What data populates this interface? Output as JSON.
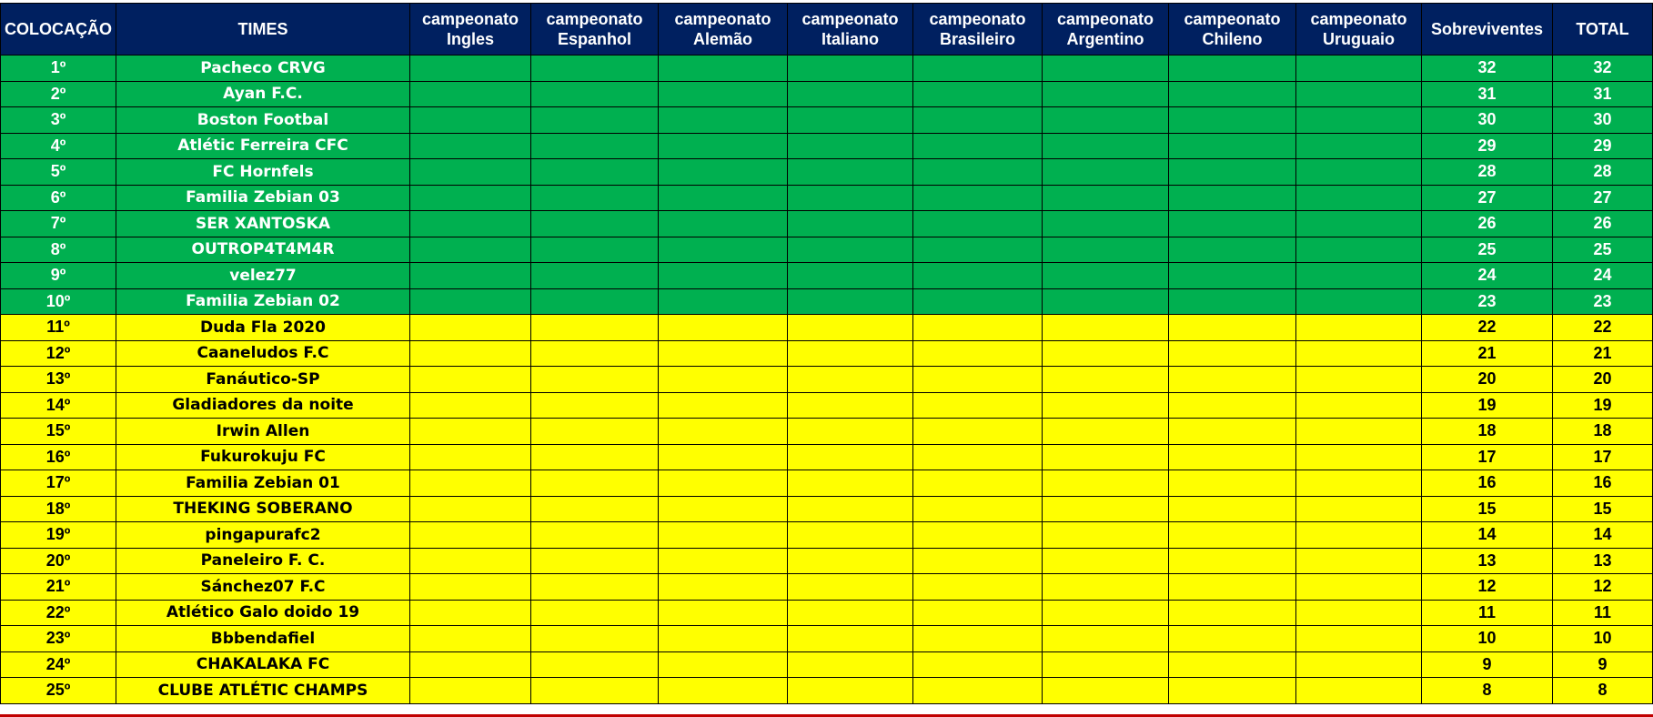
{
  "colors": {
    "header": "#002060",
    "top10": "#00B050",
    "rest": "#FFFF00"
  },
  "headers": [
    "COLOCAÇÃO",
    "TIMES",
    "campeonato Ingles",
    "campeonato Espanhol",
    "campeonato Alemão",
    "campeonato Italiano",
    "campeonato Brasileiro",
    "campeonato Argentino",
    "campeonato Chileno",
    "campeonato Uruguaio",
    "Sobreviventes",
    "TOTAL"
  ],
  "rows": [
    {
      "pos": "1º",
      "team": "Pacheco CRVG",
      "sobreviventes": "32",
      "total": "32"
    },
    {
      "pos": "2º",
      "team": "Ayan F.C.",
      "sobreviventes": "31",
      "total": "31"
    },
    {
      "pos": "3º",
      "team": "Boston Footbal",
      "sobreviventes": "30",
      "total": "30"
    },
    {
      "pos": "4º",
      "team": "Atlétic Ferreira CFC",
      "sobreviventes": "29",
      "total": "29"
    },
    {
      "pos": "5º",
      "team": "FC Hornfels",
      "sobreviventes": "28",
      "total": "28"
    },
    {
      "pos": "6º",
      "team": "Familia Zebian 03",
      "sobreviventes": "27",
      "total": "27"
    },
    {
      "pos": "7º",
      "team": "SER XANTOSKA",
      "sobreviventes": "26",
      "total": "26"
    },
    {
      "pos": "8º",
      "team": "OUTROP4T4M4R",
      "sobreviventes": "25",
      "total": "25"
    },
    {
      "pos": "9º",
      "team": "velez77",
      "sobreviventes": "24",
      "total": "24"
    },
    {
      "pos": "10º",
      "team": "Familia Zebian 02",
      "sobreviventes": "23",
      "total": "23"
    },
    {
      "pos": "11º",
      "team": "Duda Fla 2020",
      "sobreviventes": "22",
      "total": "22"
    },
    {
      "pos": "12º",
      "team": "Caaneludos F.C",
      "sobreviventes": "21",
      "total": "21"
    },
    {
      "pos": "13º",
      "team": "Fanáutico-SP",
      "sobreviventes": "20",
      "total": "20"
    },
    {
      "pos": "14º",
      "team": "Gladiadores da noite",
      "sobreviventes": "19",
      "total": "19"
    },
    {
      "pos": "15º",
      "team": "Irwin Allen",
      "sobreviventes": "18",
      "total": "18"
    },
    {
      "pos": "16º",
      "team": "Fukurokuju FC",
      "sobreviventes": "17",
      "total": "17"
    },
    {
      "pos": "17º",
      "team": "Familia Zebian 01",
      "sobreviventes": "16",
      "total": "16"
    },
    {
      "pos": "18º",
      "team": "THEKING SOBERANO",
      "sobreviventes": "15",
      "total": "15"
    },
    {
      "pos": "19º",
      "team": "pingapurafc2",
      "sobreviventes": "14",
      "total": "14"
    },
    {
      "pos": "20º",
      "team": "Paneleiro F. C.",
      "sobreviventes": "13",
      "total": "13"
    },
    {
      "pos": "21º",
      "team": "Sánchez07 F.C",
      "sobreviventes": "12",
      "total": "12"
    },
    {
      "pos": "22º",
      "team": "Atlético Galo doido 19",
      "sobreviventes": "11",
      "total": "11"
    },
    {
      "pos": "23º",
      "team": "Bbbendafiel",
      "sobreviventes": "10",
      "total": "10"
    },
    {
      "pos": "24º",
      "team": "CHAKALAKA FC",
      "sobreviventes": "9",
      "total": "9"
    },
    {
      "pos": "25º",
      "team": "CLUBE ATLÉTIC CHAMPS",
      "sobreviventes": "8",
      "total": "8"
    }
  ]
}
